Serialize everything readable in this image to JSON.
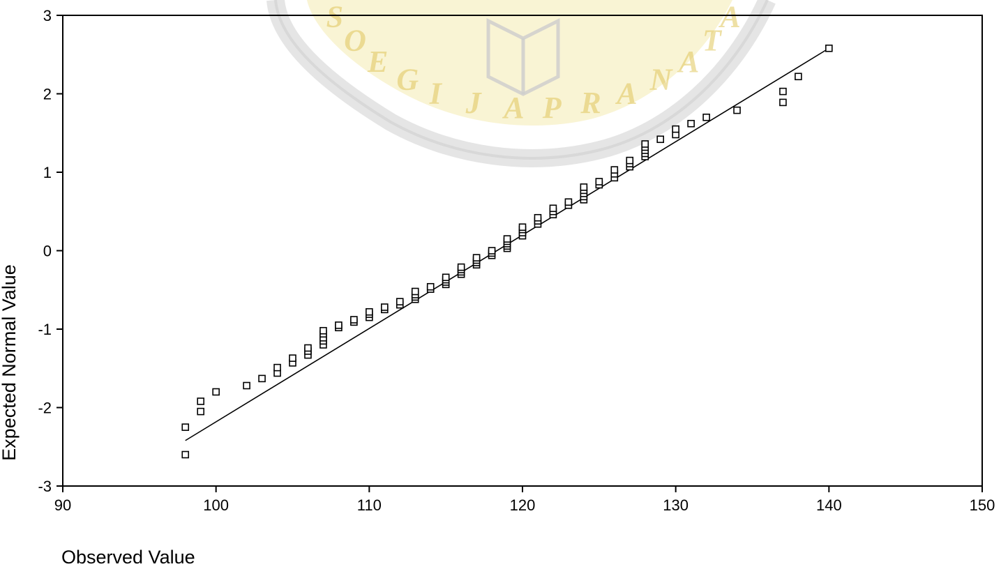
{
  "watermark": {
    "text": "SOEGIJAPRANATA",
    "color": "#dcc04a"
  },
  "chart_data": {
    "type": "scatter",
    "title": "",
    "xlabel": "Observed Value",
    "ylabel": "Expected Normal Value",
    "xlim": [
      90,
      150
    ],
    "ylim": [
      -3,
      3
    ],
    "xticks": [
      90,
      100,
      110,
      120,
      130,
      140,
      150
    ],
    "yticks": [
      -3,
      -2,
      -1,
      0,
      1,
      2,
      3
    ],
    "grid": false,
    "legend": "none",
    "marker": "open-square",
    "points": [
      [
        98,
        -2.6
      ],
      [
        98,
        -2.25
      ],
      [
        99,
        -2.05
      ],
      [
        99,
        -1.92
      ],
      [
        100,
        -1.8
      ],
      [
        102,
        -1.72
      ],
      [
        103,
        -1.63
      ],
      [
        104,
        -1.56
      ],
      [
        104,
        -1.49
      ],
      [
        105,
        -1.43
      ],
      [
        105,
        -1.37
      ],
      [
        106,
        -1.33
      ],
      [
        106,
        -1.28
      ],
      [
        106,
        -1.24
      ],
      [
        107,
        -1.2
      ],
      [
        107,
        -1.15
      ],
      [
        107,
        -1.11
      ],
      [
        107,
        -1.06
      ],
      [
        107,
        -1.02
      ],
      [
        108,
        -0.98
      ],
      [
        108,
        -0.95
      ],
      [
        109,
        -0.91
      ],
      [
        109,
        -0.88
      ],
      [
        110,
        -0.85
      ],
      [
        110,
        -0.81
      ],
      [
        110,
        -0.78
      ],
      [
        111,
        -0.75
      ],
      [
        111,
        -0.72
      ],
      [
        112,
        -0.69
      ],
      [
        112,
        -0.65
      ],
      [
        113,
        -0.62
      ],
      [
        113,
        -0.59
      ],
      [
        113,
        -0.56
      ],
      [
        113,
        -0.52
      ],
      [
        114,
        -0.49
      ],
      [
        114,
        -0.46
      ],
      [
        115,
        -0.43
      ],
      [
        115,
        -0.4
      ],
      [
        115,
        -0.37
      ],
      [
        115,
        -0.34
      ],
      [
        116,
        -0.3
      ],
      [
        116,
        -0.27
      ],
      [
        116,
        -0.24
      ],
      [
        116,
        -0.21
      ],
      [
        117,
        -0.18
      ],
      [
        117,
        -0.15
      ],
      [
        117,
        -0.12
      ],
      [
        117,
        -0.09
      ],
      [
        118,
        -0.06
      ],
      [
        118,
        -0.03
      ],
      [
        118,
        0.0
      ],
      [
        119,
        0.03
      ],
      [
        119,
        0.06
      ],
      [
        119,
        0.09
      ],
      [
        119,
        0.12
      ],
      [
        119,
        0.15
      ],
      [
        120,
        0.19
      ],
      [
        120,
        0.23
      ],
      [
        120,
        0.27
      ],
      [
        120,
        0.3
      ],
      [
        121,
        0.34
      ],
      [
        121,
        0.38
      ],
      [
        121,
        0.42
      ],
      [
        122,
        0.46
      ],
      [
        122,
        0.5
      ],
      [
        122,
        0.54
      ],
      [
        123,
        0.58
      ],
      [
        123,
        0.62
      ],
      [
        124,
        0.65
      ],
      [
        124,
        0.69
      ],
      [
        124,
        0.73
      ],
      [
        124,
        0.77
      ],
      [
        124,
        0.81
      ],
      [
        125,
        0.84
      ],
      [
        125,
        0.88
      ],
      [
        126,
        0.93
      ],
      [
        126,
        0.98
      ],
      [
        126,
        1.03
      ],
      [
        127,
        1.07
      ],
      [
        127,
        1.11
      ],
      [
        127,
        1.15
      ],
      [
        128,
        1.2
      ],
      [
        128,
        1.24
      ],
      [
        128,
        1.28
      ],
      [
        128,
        1.32
      ],
      [
        128,
        1.36
      ],
      [
        129,
        1.42
      ],
      [
        130,
        1.48
      ],
      [
        130,
        1.55
      ],
      [
        131,
        1.62
      ],
      [
        132,
        1.7
      ],
      [
        134,
        1.79
      ],
      [
        137,
        1.89
      ],
      [
        137,
        2.03
      ],
      [
        138,
        2.22
      ],
      [
        140,
        2.58
      ]
    ],
    "reference_line": [
      [
        98,
        -2.42
      ],
      [
        140,
        2.58
      ]
    ]
  }
}
